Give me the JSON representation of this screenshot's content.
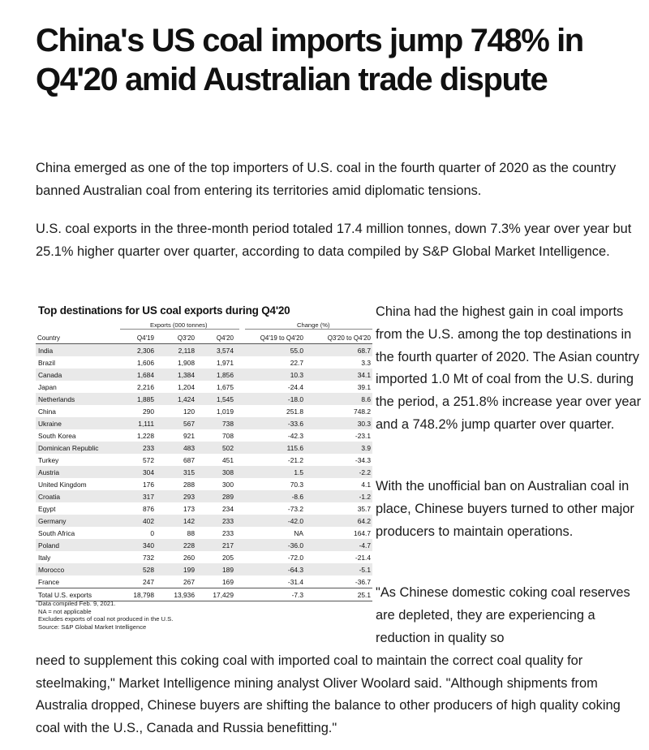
{
  "article": {
    "headline": "China's US coal imports jump 748% in Q4'20 amid Australian trade dispute",
    "paragraph1": "China emerged as one of the top importers of U.S. coal in the fourth quarter of 2020 as the country banned Australian coal from entering its territories amid diplomatic tensions.",
    "paragraph2": "U.S. coal exports in the three-month period totaled 17.4 million tonnes, down 7.3% year over year but 25.1% higher quarter over quarter, according to data compiled by S&P Global Market Intelligence.",
    "side1": "China had the highest gain in coal imports from the U.S. among the top destinations in the fourth quarter of 2020. The Asian country imported 1.0 Mt of coal from the U.S. during the period, a 251.8% increase year over year and a 748.2% jump quarter over quarter.",
    "side2": "With the unofficial ban on Australian coal in place, Chinese buyers turned to other major producers to maintain operations.",
    "side3": "\"As Chinese domestic coking coal reserves are depleted, they are experiencing a reduction in quality so",
    "side3_tail": "need to supplement this coking coal with imported coal to maintain the correct coal quality for steelmaking,\" Market Intelligence mining analyst Oliver Woolard said. \"Although shipments from Australia dropped, Chinese buyers are shifting the balance to other producers of high quality coking coal with the U.S., Canada and Russia benefitting.\""
  },
  "table": {
    "title": "Top destinations for US coal exports during Q4'20",
    "group_exports": "Exports (000 tonnes)",
    "group_change": "Change (%)",
    "columns": [
      "Country",
      "Q4'19",
      "Q3'20",
      "Q4'20",
      "Q4'19 to Q4'20",
      "Q3'20 to Q4'20"
    ],
    "rows": [
      [
        "India",
        "2,306",
        "2,118",
        "3,574",
        "55.0",
        "68.7"
      ],
      [
        "Brazil",
        "1,606",
        "1,908",
        "1,971",
        "22.7",
        "3.3"
      ],
      [
        "Canada",
        "1,684",
        "1,384",
        "1,856",
        "10.3",
        "34.1"
      ],
      [
        "Japan",
        "2,216",
        "1,204",
        "1,675",
        "-24.4",
        "39.1"
      ],
      [
        "Netherlands",
        "1,885",
        "1,424",
        "1,545",
        "-18.0",
        "8.6"
      ],
      [
        "China",
        "290",
        "120",
        "1,019",
        "251.8",
        "748.2"
      ],
      [
        "Ukraine",
        "1,111",
        "567",
        "738",
        "-33.6",
        "30.3"
      ],
      [
        "South Korea",
        "1,228",
        "921",
        "708",
        "-42.3",
        "-23.1"
      ],
      [
        "Dominican Republic",
        "233",
        "483",
        "502",
        "115.6",
        "3.9"
      ],
      [
        "Turkey",
        "572",
        "687",
        "451",
        "-21.2",
        "-34.3"
      ],
      [
        "Austria",
        "304",
        "315",
        "308",
        "1.5",
        "-2.2"
      ],
      [
        "United Kingdom",
        "176",
        "288",
        "300",
        "70.3",
        "4.1"
      ],
      [
        "Croatia",
        "317",
        "293",
        "289",
        "-8.6",
        "-1.2"
      ],
      [
        "Egypt",
        "876",
        "173",
        "234",
        "-73.2",
        "35.7"
      ],
      [
        "Germany",
        "402",
        "142",
        "233",
        "-42.0",
        "64.2"
      ],
      [
        "South Africa",
        "0",
        "88",
        "233",
        "NA",
        "164.7"
      ],
      [
        "Poland",
        "340",
        "228",
        "217",
        "-36.0",
        "-4.7"
      ],
      [
        "Italy",
        "732",
        "260",
        "205",
        "-72.0",
        "-21.4"
      ],
      [
        "Morocco",
        "528",
        "199",
        "189",
        "-64.3",
        "-5.1"
      ],
      [
        "France",
        "247",
        "267",
        "169",
        "-31.4",
        "-36.7"
      ]
    ],
    "total": [
      "Total U.S. exports",
      "18,798",
      "13,936",
      "17,429",
      "-7.3",
      "25.1"
    ],
    "notes": [
      "Data compiled Feb. 9, 2021.",
      "NA = not applicable",
      "Excludes exports of coal not produced in the U.S.",
      "Source: S&P Global Market Intelligence"
    ]
  }
}
